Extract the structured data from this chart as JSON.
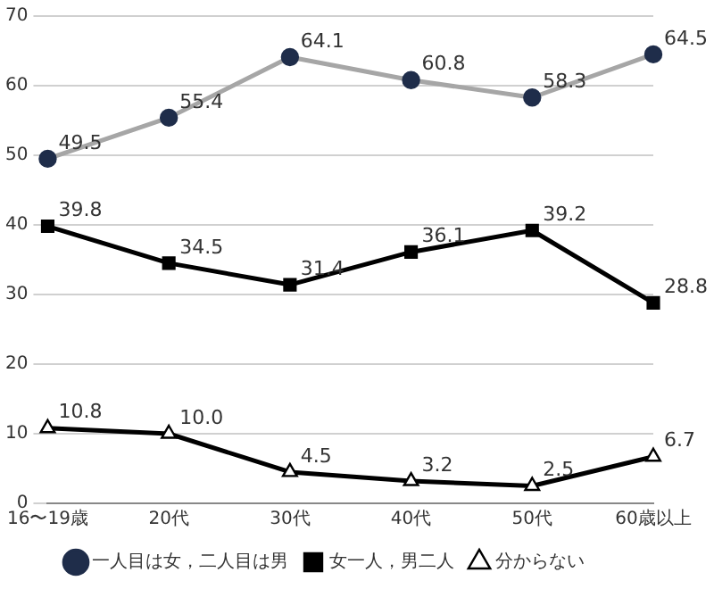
{
  "chart_data": {
    "type": "line",
    "categories": [
      "16〜19歳",
      "20代",
      "30代",
      "40代",
      "50代",
      "60歳以上"
    ],
    "series": [
      {
        "name": "一人目は女，二人目は男",
        "color": "#a6a6a6",
        "colors": [
          "#1f2d4a",
          "#1f2d4a",
          "#1f2d4a",
          "#1f2d4a",
          "#1f2d4a",
          "#1f2d4a"
        ],
        "marker": "circle",
        "values": [
          49.5,
          55.4,
          64.1,
          60.8,
          58.3,
          64.5
        ],
        "value_labels": [
          "49.5",
          "55.4",
          "64.1",
          "60.8",
          "58.3",
          "64.5"
        ]
      },
      {
        "name": "女一人，男二人",
        "color": "#000000",
        "marker": "square",
        "values": [
          39.8,
          34.5,
          31.4,
          36.1,
          39.2,
          28.8
        ],
        "value_labels": [
          "39.8",
          "34.5",
          "31.4",
          "36.1",
          "39.2",
          "28.8"
        ]
      },
      {
        "name": "分からない",
        "color": "#000000",
        "marker": "triangle",
        "values": [
          10.8,
          10.0,
          4.5,
          3.2,
          2.5,
          6.7
        ],
        "value_labels": [
          "10.8",
          "10.0",
          "4.5",
          "3.2",
          "2.5",
          "6.7"
        ]
      }
    ],
    "ylim": [
      0,
      70
    ],
    "yticks": [
      0,
      10,
      20,
      30,
      40,
      50,
      60,
      70
    ],
    "grid": "y",
    "legend": "bottom"
  }
}
